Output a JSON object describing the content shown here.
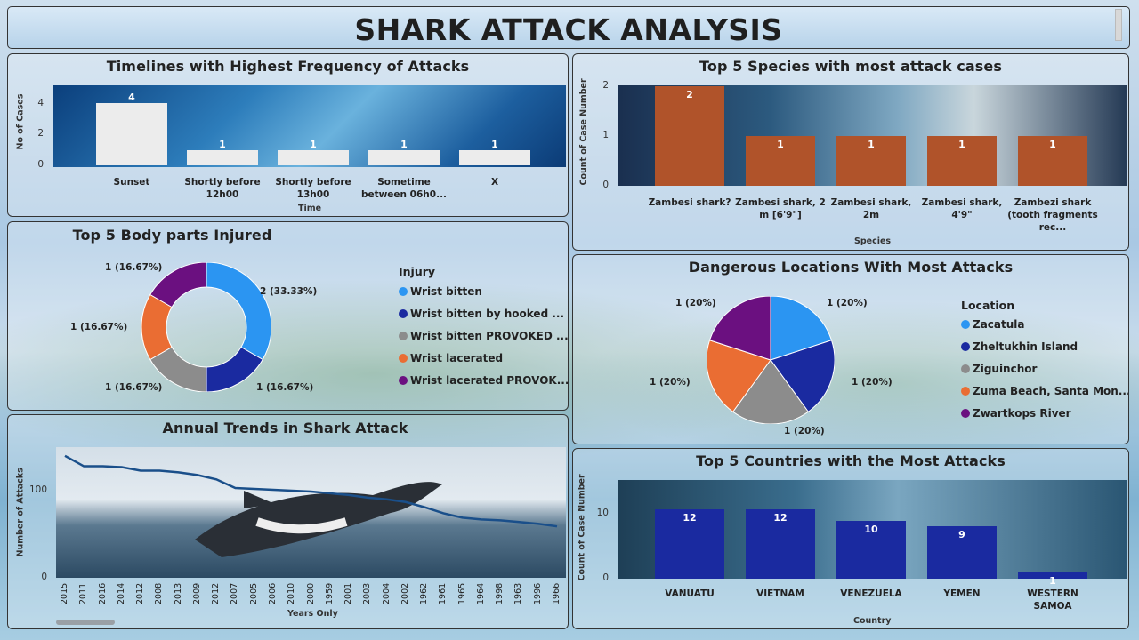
{
  "title": "SHARK ATTACK ANALYSIS",
  "p1": {
    "title": "Timelines with Highest Frequency of Attacks",
    "ylabel": "No of Cases",
    "xlabel": "Time",
    "yticks": [
      "4",
      "2",
      "0"
    ],
    "chart_data": {
      "type": "bar",
      "categories": [
        "Sunset",
        "Shortly before 12h00",
        "Shortly before 13h00",
        "Sometime between 06h0...",
        "X"
      ],
      "values": [
        4,
        1,
        1,
        1,
        1
      ],
      "ylim": [
        0,
        4
      ],
      "color": "#ececec"
    }
  },
  "p2": {
    "title": "Top 5 Species with most attack cases",
    "ylabel": "Count of Case Number",
    "xlabel": "Species",
    "yticks": [
      "2",
      "1",
      "0"
    ],
    "chart_data": {
      "type": "bar",
      "categories": [
        "Zambesi shark?",
        "Zambesi shark, 2 m [6'9\"]",
        "Zambesi shark, 2m",
        "Zambesi shark, 4'9\"",
        "Zambezi shark (tooth fragments rec..."
      ],
      "values": [
        2,
        1,
        1,
        1,
        1
      ],
      "ylim": [
        0,
        2
      ],
      "color": "#b0532a"
    }
  },
  "p3": {
    "title": "Top 5 Body parts Injured",
    "legend_title": "Injury",
    "chart_data": {
      "type": "pie",
      "labels": [
        "Wrist bitten",
        "Wrist bitten by hooked ...",
        "Wrist bitten PROVOKED ...",
        "Wrist lacerated",
        "Wrist lacerated PROVOK..."
      ],
      "values": [
        2,
        1,
        1,
        1,
        1
      ],
      "percents": [
        "2 (33.33%)",
        "1 (16.67%)",
        "1 (16.67%)",
        "1 (16.67%)",
        "1 (16.67%)"
      ],
      "colors": [
        "#2b95f2",
        "#1a2aa0",
        "#8c8c8c",
        "#ea6d33",
        "#6b1080"
      ],
      "donut": true
    }
  },
  "p4": {
    "title": "Dangerous Locations With Most Attacks",
    "legend_title": "Location",
    "chart_data": {
      "type": "pie",
      "labels": [
        "Zacatula",
        "Zheltukhin Island",
        "Ziguinchor",
        "Zuma Beach, Santa Mon...",
        "Zwartkops River"
      ],
      "values": [
        1,
        1,
        1,
        1,
        1
      ],
      "percents": [
        "1 (20%)",
        "1 (20%)",
        "1 (20%)",
        "1 (20%)",
        "1 (20%)"
      ],
      "colors": [
        "#2b95f2",
        "#1a2aa0",
        "#8c8c8c",
        "#ea6d33",
        "#6b1080"
      ],
      "donut": false
    }
  },
  "p5": {
    "title": "Annual Trends in Shark Attack",
    "ylabel": "Number of Attacks",
    "xlabel": "Years Only",
    "yticks": [
      "100",
      "0"
    ],
    "chart_data": {
      "type": "line",
      "x": [
        "2015",
        "2011",
        "2016",
        "2014",
        "2012",
        "2008",
        "2013",
        "2009",
        "2012",
        "2007",
        "2005",
        "2006",
        "2010",
        "2000",
        "1959",
        "2001",
        "2003",
        "2004",
        "2002",
        "1962",
        "1961",
        "1965",
        "1964",
        "1998",
        "1963",
        "1996",
        "1966"
      ],
      "values": [
        140,
        128,
        128,
        127,
        123,
        123,
        121,
        118,
        113,
        103,
        102,
        101,
        100,
        99,
        97,
        95,
        92,
        90,
        87,
        81,
        74,
        69,
        67,
        66,
        64,
        62,
        59
      ],
      "ylim": [
        0,
        150
      ],
      "color": "#1a4f8a"
    }
  },
  "p6": {
    "title": "Top 5 Countries with the Most Attacks",
    "ylabel": "Count of Case Number",
    "xlabel": "Country",
    "yticks": [
      "10",
      "0"
    ],
    "chart_data": {
      "type": "bar",
      "categories": [
        "VANUATU",
        "VIETNAM",
        "VENEZUELA",
        "YEMEN",
        "WESTERN SAMOA"
      ],
      "values": [
        12,
        12,
        10,
        9,
        1
      ],
      "ylim": [
        0,
        13.5
      ],
      "color": "#1a2aa0"
    }
  }
}
